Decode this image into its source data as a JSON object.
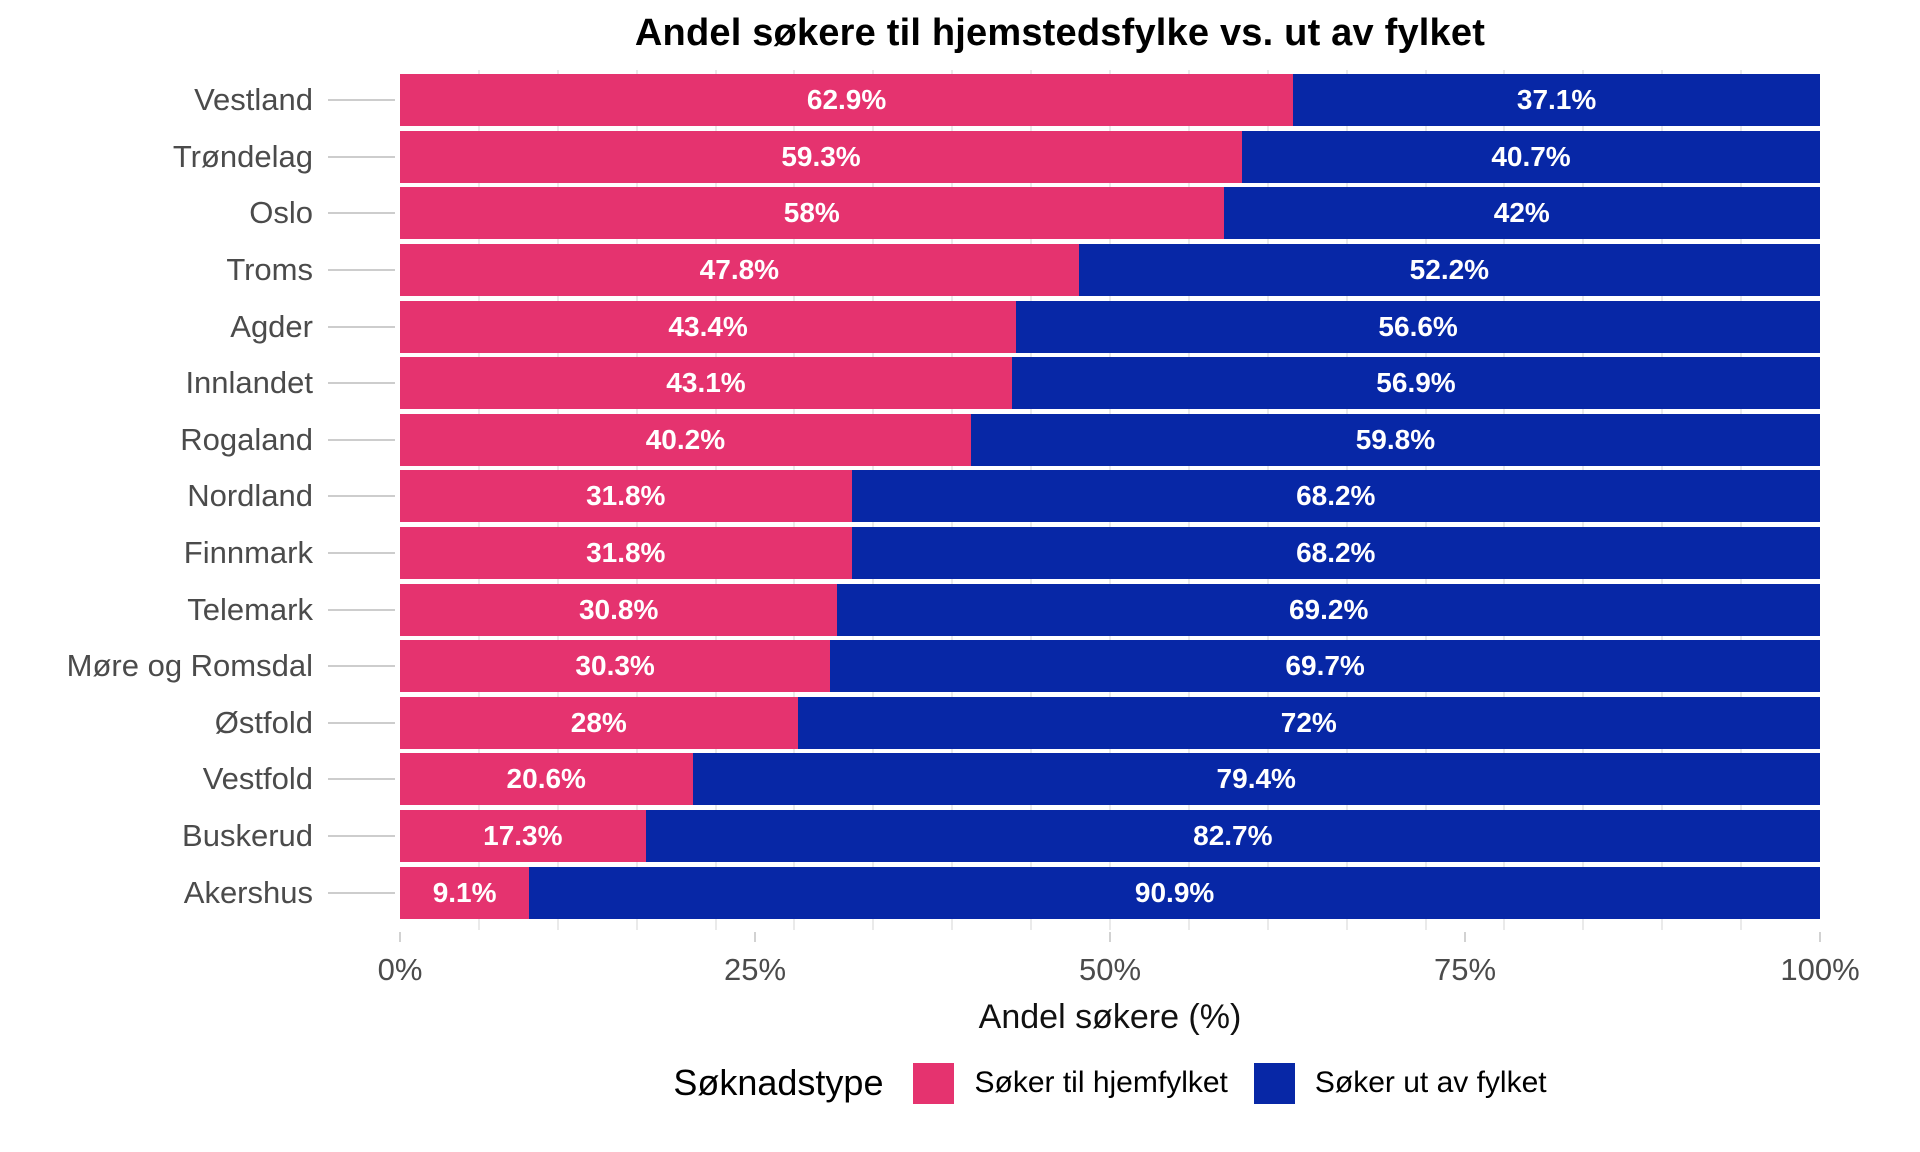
{
  "title": "Andel søkere til hjemstedsfylke vs. ut av fylket",
  "x_axis": {
    "label": "Andel søkere (%)",
    "ticks": [
      {
        "label": "0%",
        "value": 0
      },
      {
        "label": "25%",
        "value": 25
      },
      {
        "label": "50%",
        "value": 50
      },
      {
        "label": "75%",
        "value": 75
      },
      {
        "label": "100%",
        "value": 100
      }
    ]
  },
  "legend": {
    "title": "Søknadstype",
    "items": [
      {
        "label": "Søker til hjemfylket",
        "color_key": "home"
      },
      {
        "label": "Søker ut av fylket",
        "color_key": "away"
      }
    ]
  },
  "colors": {
    "home": "#E5336F",
    "away": "#0727A6",
    "axis_text": "#4B4B4B",
    "grid": "#EAEAEA",
    "tick": "#CDCDCD",
    "title": "#000000"
  },
  "chart_data": {
    "type": "bar",
    "stacked": true,
    "orientation": "horizontal",
    "title": "Andel søkere til hjemstedsfylke vs. ut av fylket",
    "xlabel": "Andel søkere (%)",
    "xlim": [
      0,
      100
    ],
    "x_ticks": [
      "0%",
      "25%",
      "50%",
      "75%",
      "100%"
    ],
    "legend_position": "bottom",
    "grid": "minor-vertical",
    "categories": [
      "Vestland",
      "Trøndelag",
      "Oslo",
      "Troms",
      "Agder",
      "Innlandet",
      "Rogaland",
      "Nordland",
      "Finnmark",
      "Telemark",
      "Møre og Romsdal",
      "Østfold",
      "Vestfold",
      "Buskerud",
      "Akershus"
    ],
    "series": [
      {
        "name": "Søker til hjemfylket",
        "values": [
          62.9,
          59.3,
          58,
          47.8,
          43.4,
          43.1,
          40.2,
          31.8,
          31.8,
          30.8,
          30.3,
          28,
          20.6,
          17.3,
          9.1
        ]
      },
      {
        "name": "Søker ut av fylket",
        "values": [
          37.1,
          40.7,
          42,
          52.2,
          56.6,
          56.9,
          59.8,
          68.2,
          68.2,
          69.2,
          69.7,
          72,
          79.4,
          82.7,
          90.9
        ]
      }
    ],
    "value_labels": [
      [
        "62.9%",
        "37.1%"
      ],
      [
        "59.3%",
        "40.7%"
      ],
      [
        "58%",
        "42%"
      ],
      [
        "47.8%",
        "52.2%"
      ],
      [
        "43.4%",
        "56.6%"
      ],
      [
        "43.1%",
        "56.9%"
      ],
      [
        "40.2%",
        "59.8%"
      ],
      [
        "31.8%",
        "68.2%"
      ],
      [
        "31.8%",
        "68.2%"
      ],
      [
        "30.8%",
        "69.2%"
      ],
      [
        "30.3%",
        "69.7%"
      ],
      [
        "28%",
        "72%"
      ],
      [
        "20.6%",
        "79.4%"
      ],
      [
        "17.3%",
        "82.7%"
      ],
      [
        "9.1%",
        "90.9%"
      ]
    ]
  }
}
